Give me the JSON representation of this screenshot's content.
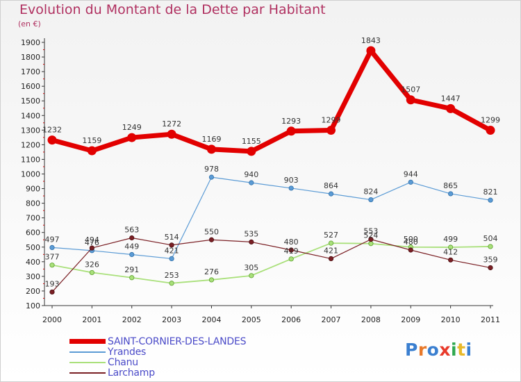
{
  "title": "Evolution du Montant de la Dette par Habitant",
  "unit": "(en €)",
  "logo": {
    "letters": [
      "P",
      "r",
      "o",
      "x",
      "i",
      "t",
      "i"
    ],
    "colors": [
      "#3a7fd0",
      "#e8792a",
      "#3a7fd0",
      "#e8392a",
      "#2fa84f",
      "#e8b92a",
      "#3a7fd0"
    ]
  },
  "chart_data": {
    "type": "line",
    "categories": [
      "2000",
      "2001",
      "2002",
      "2003",
      "2004",
      "2005",
      "2006",
      "2007",
      "2008",
      "2009",
      "2010",
      "2011"
    ],
    "ylim": [
      100,
      1900
    ],
    "yticks": [
      100,
      200,
      300,
      400,
      500,
      600,
      700,
      800,
      900,
      1000,
      1100,
      1200,
      1300,
      1400,
      1500,
      1600,
      1700,
      1800,
      1900
    ],
    "grid": false,
    "legend_position": "bottom-left",
    "series": [
      {
        "name": "SAINT-CORNIER-DES-LANDES",
        "color": "#e20000",
        "width": 7,
        "marker": 6.5,
        "values": [
          1232,
          1159,
          1249,
          1272,
          1169,
          1155,
          1293,
          1299,
          1843,
          1507,
          1447,
          1299
        ]
      },
      {
        "name": "Yrandes",
        "color": "#5b9bd5",
        "width": 1.2,
        "marker": 3.2,
        "stroke": "#2f6fa8",
        "values": [
          497,
          476,
          449,
          421,
          978,
          940,
          903,
          864,
          824,
          944,
          865,
          821
        ]
      },
      {
        "name": "Chanu",
        "color": "#a9e07a",
        "width": 1.8,
        "marker": 3.2,
        "stroke": "#5aa02c",
        "values": [
          377,
          326,
          291,
          253,
          276,
          305,
          419,
          527,
          524,
          500,
          499,
          504
        ]
      },
      {
        "name": "Larchamp",
        "color": "#7a1f24",
        "width": 1.2,
        "marker": 3.2,
        "stroke": "#4a0d10",
        "values": [
          193,
          494,
          563,
          514,
          550,
          535,
          480,
          421,
          553,
          480,
          412,
          359
        ]
      }
    ]
  }
}
